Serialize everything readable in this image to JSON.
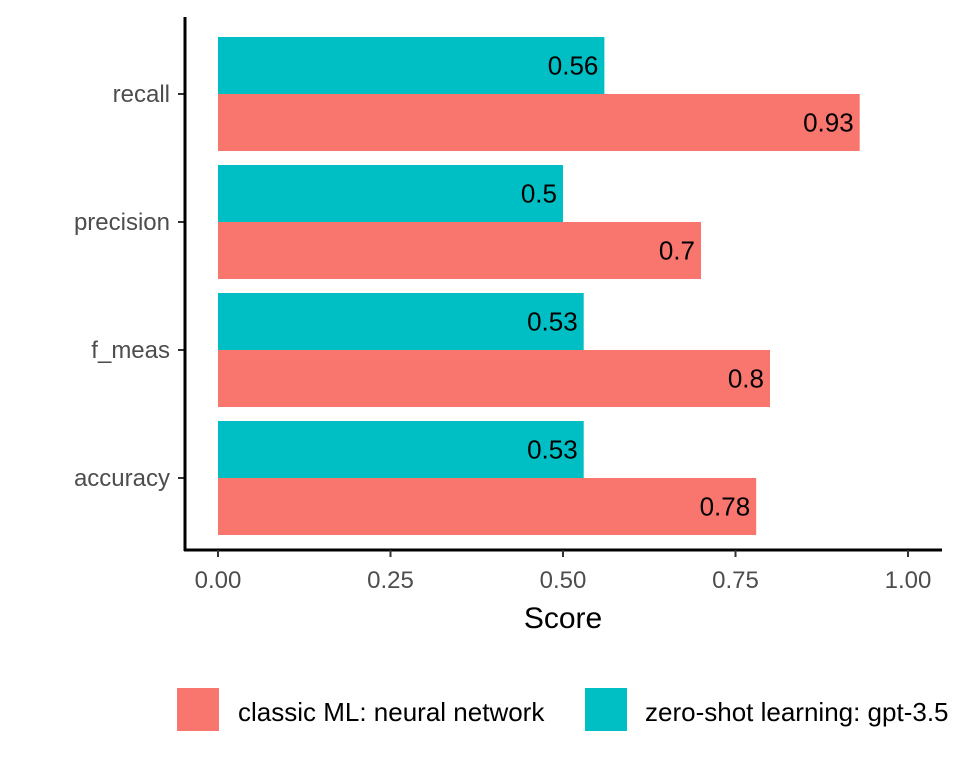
{
  "chart_data": {
    "type": "bar",
    "orientation": "horizontal",
    "categories": [
      "recall",
      "precision",
      "f_meas",
      "accuracy"
    ],
    "series": [
      {
        "name": "classic ML: neural network",
        "color": "#F8766D",
        "values": [
          0.93,
          0.7,
          0.8,
          0.78
        ],
        "labels": [
          "0.93",
          "0.7",
          "0.8",
          "0.78"
        ]
      },
      {
        "name": "zero-shot learning: gpt-3.5",
        "color": "#00BFC4",
        "values": [
          0.56,
          0.5,
          0.53,
          0.53
        ],
        "labels": [
          "0.56",
          "0.5",
          "0.53",
          "0.53"
        ]
      }
    ],
    "xlabel": "Score",
    "ylabel": "",
    "xlim": [
      0,
      1
    ],
    "xticks": [
      "0.00",
      "0.25",
      "0.50",
      "0.75",
      "1.00"
    ],
    "grid": false,
    "legend_position": "bottom"
  }
}
